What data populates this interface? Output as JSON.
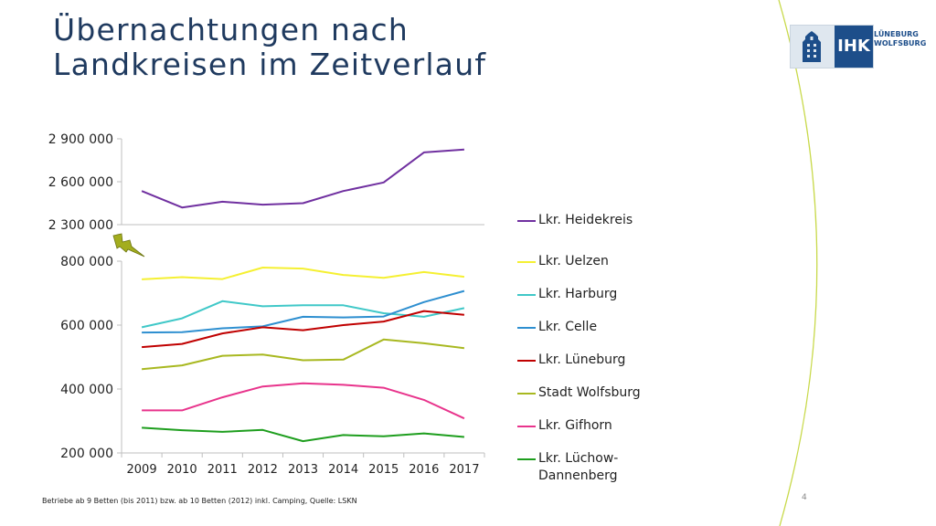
{
  "title_line1": "Übernachtungen nach",
  "title_line2": "Landkreisen im Zeitverlauf",
  "logo": {
    "mark": "IHK",
    "line1": "LÜNEBURG",
    "line2": "WOLFSBURG"
  },
  "footnote": "Betriebe ab  9 Betten (bis 2011) bzw. ab 10 Betten (2012) inkl. Camping, Quelle: LSKN",
  "page_number": "4",
  "colors": {
    "title": "#1f3a5f",
    "accent_arc": "#c8d94a",
    "logo_blue": "#1d4e8a",
    "axis": "#bfbfbf"
  },
  "chart_data": {
    "type": "line",
    "categories": [
      "2009",
      "2010",
      "2011",
      "2012",
      "2013",
      "2014",
      "2015",
      "2016",
      "2017"
    ],
    "axis_break": true,
    "upper_axis": {
      "ylim": [
        2300000,
        2900000
      ],
      "ticks": [
        2900000,
        2600000,
        2300000
      ],
      "tick_labels": [
        "2 900 000",
        "2 600 000",
        "2 300 000"
      ]
    },
    "lower_axis": {
      "ylim": [
        200000,
        800000
      ],
      "ticks": [
        800000,
        600000,
        400000,
        200000
      ],
      "tick_labels": [
        "800 000",
        "600 000",
        "400 000",
        "200 000"
      ]
    },
    "grid": false,
    "legend_position": "right",
    "series": [
      {
        "name": "Lkr. Heidekreis",
        "color": "#7030a0",
        "axis": "upper",
        "values": [
          2535000,
          2420000,
          2460000,
          2440000,
          2450000,
          2535000,
          2595000,
          2805000,
          2825000
        ]
      },
      {
        "name": "Lkr. Uelzen",
        "color": "#f5f032",
        "axis": "lower",
        "values": [
          743000,
          750000,
          744000,
          780000,
          777000,
          757000,
          748000,
          766000,
          751000
        ]
      },
      {
        "name": "Lkr. Harburg",
        "color": "#40c8c8",
        "axis": "lower",
        "values": [
          593000,
          621000,
          675000,
          659000,
          662000,
          662000,
          637000,
          626000,
          653000
        ]
      },
      {
        "name": "Lkr. Celle",
        "color": "#2e8fd0",
        "axis": "lower",
        "values": [
          577000,
          578000,
          590000,
          596000,
          626000,
          624000,
          627000,
          672000,
          707000
        ]
      },
      {
        "name": "Lkr. Lüneburg",
        "color": "#c00000",
        "axis": "lower",
        "values": [
          531000,
          541000,
          574000,
          593000,
          584000,
          600000,
          611000,
          644000,
          632000
        ]
      },
      {
        "name": "Stadt Wolfsburg",
        "color": "#a8b820",
        "axis": "lower",
        "values": [
          462000,
          474000,
          504000,
          508000,
          490000,
          492000,
          555000,
          543000,
          528000
        ]
      },
      {
        "name": "Lkr. Gifhorn",
        "color": "#e8348c",
        "axis": "lower",
        "values": [
          333000,
          333000,
          374000,
          408000,
          418000,
          413000,
          404000,
          366000,
          308000
        ]
      },
      {
        "name": "Lkr. Lüchow-\nDannenberg",
        "color": "#1e9e1e",
        "axis": "lower",
        "values": [
          279000,
          271000,
          266000,
          272000,
          237000,
          256000,
          252000,
          261000,
          250000
        ]
      }
    ]
  }
}
